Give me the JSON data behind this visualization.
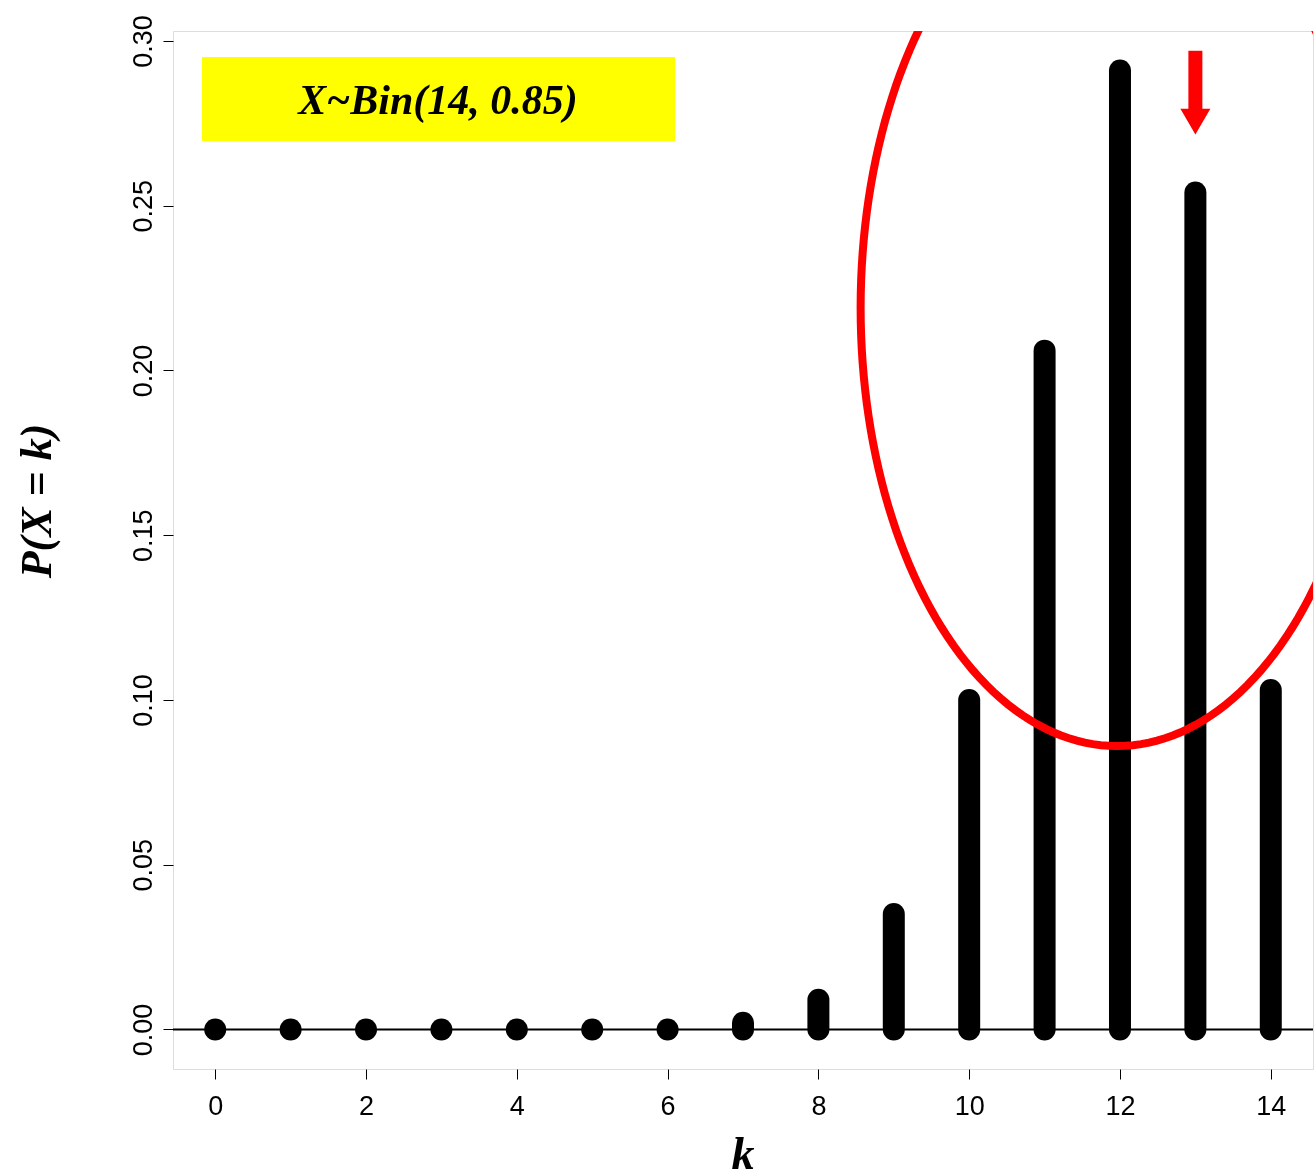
{
  "chart_data": {
    "type": "bar",
    "xlabel": "k",
    "ylabel": "P(X = k)",
    "x": [
      0,
      1,
      2,
      3,
      4,
      5,
      6,
      7,
      8,
      9,
      10,
      11,
      12,
      13,
      14
    ],
    "values": [
      0,
      0,
      0,
      0,
      0,
      0,
      0,
      0.002,
      0.009,
      0.035,
      0.1,
      0.206,
      0.291,
      0.254,
      0.103
    ],
    "color": "#000000",
    "xlim": [
      -0.56,
      14.56
    ],
    "ylim": [
      -0.012,
      0.303
    ],
    "xticks": [
      0,
      2,
      4,
      6,
      8,
      10,
      12,
      14
    ],
    "yticks": [
      {
        "value": 0,
        "label": "0.00"
      },
      {
        "value": 0.05,
        "label": "0.05"
      },
      {
        "value": 0.1,
        "label": "0.10"
      },
      {
        "value": 0.15,
        "label": "0.15"
      },
      {
        "value": 0.2,
        "label": "0.20"
      },
      {
        "value": 0.25,
        "label": "0.25"
      },
      {
        "value": 0.3,
        "label": "0.30"
      }
    ],
    "ref_lines": [
      {
        "axis": "y",
        "value": 0,
        "color": "#000000"
      }
    ],
    "annotations": [
      "X~Bin(14, 0.85)"
    ],
    "grid": false
  }
}
